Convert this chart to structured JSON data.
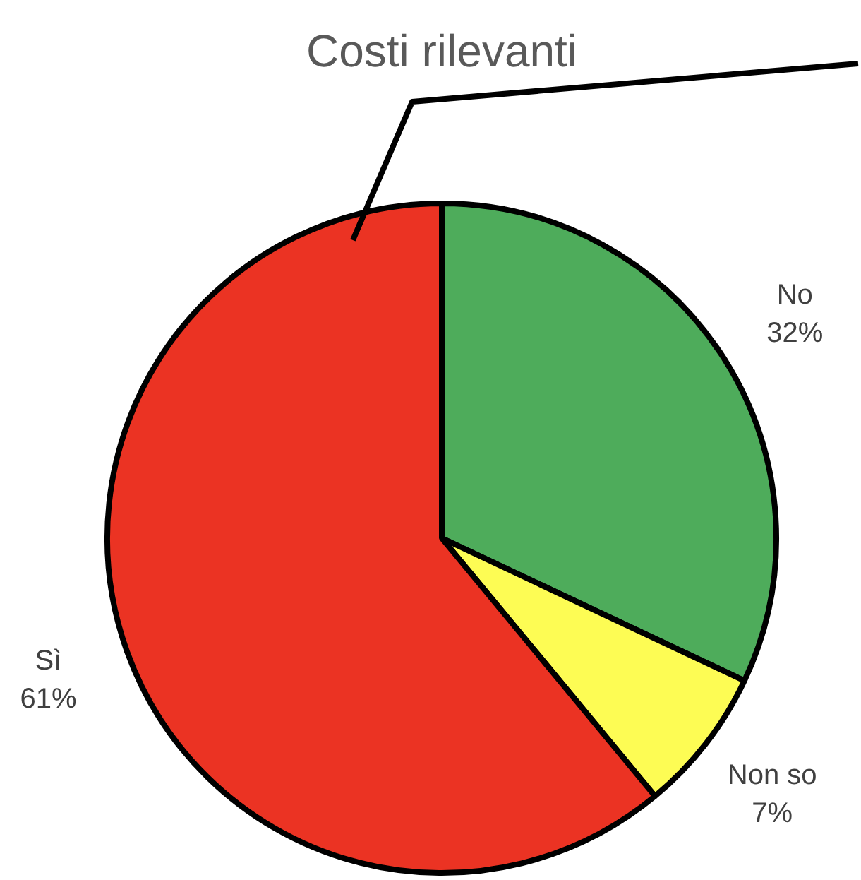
{
  "chart_data": {
    "type": "pie",
    "title": "Costi rilevanti",
    "categories": [
      "No",
      "Non so",
      "Sì"
    ],
    "values": [
      32,
      7,
      61
    ],
    "value_labels": [
      "32%",
      "7%",
      "61%"
    ],
    "colors": [
      "#4eac5b",
      "#fdfc54",
      "#eb3323"
    ],
    "legend": false
  }
}
